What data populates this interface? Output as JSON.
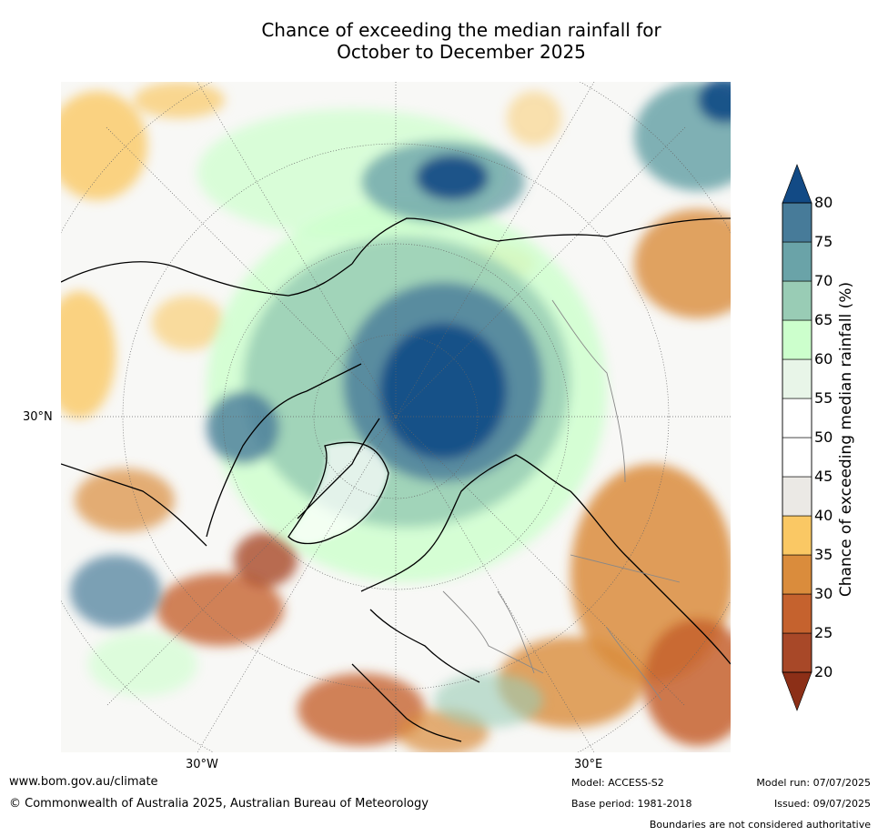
{
  "title": {
    "line1": "Chance of exceeding the median rainfall for",
    "line2": "October to December 2025"
  },
  "map": {
    "projection": "north-polar-stereographic",
    "labels": {
      "lat_left": "30°N",
      "lon_bottom_left": "30°W",
      "lon_bottom_right": "30°E"
    }
  },
  "colorbar": {
    "title": "Chance of exceeding median rainfall (%)",
    "ticks": [
      "20",
      "25",
      "30",
      "35",
      "40",
      "45",
      "50",
      "55",
      "60",
      "65",
      "70",
      "75",
      "80"
    ],
    "colors": [
      "#8c2f17",
      "#a84828",
      "#c5622e",
      "#da8c3c",
      "#fac864",
      "#ebe9e5",
      "#ffffff",
      "#ffffff",
      "#e8f5e8",
      "#ccffcc",
      "#99ccb5",
      "#6aa3a8",
      "#477b99",
      "#124a85"
    ]
  },
  "footer": {
    "url": "www.bom.gov.au/climate",
    "copyright": "© Commonwealth of Australia 2025, Australian Bureau of Meteorology",
    "model": "Model: ACCESS-S2",
    "base_period": "Base period: 1981-2018",
    "model_run": "Model run: 07/07/2025",
    "issued": "Issued: 09/07/2025",
    "disclaimer": "Boundaries are not considered authoritative"
  }
}
